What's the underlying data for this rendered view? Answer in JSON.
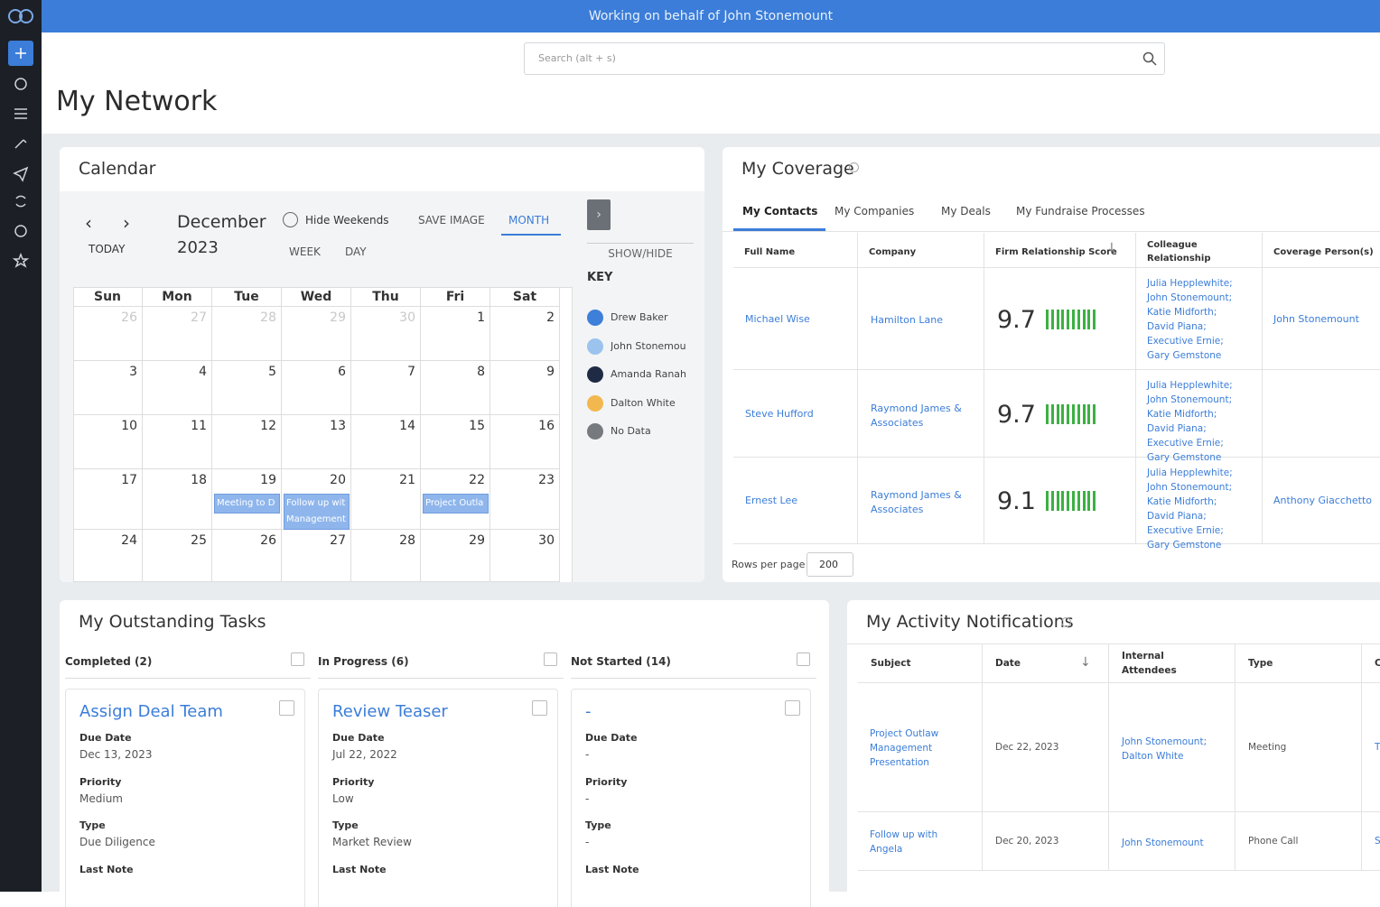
{
  "banner": "Working on behalf of John Stonemount",
  "search_placeholder": "Search (alt + s)",
  "page_title": "My Network",
  "calendar": {
    "title": "Calendar",
    "today": "TODAY",
    "month": "December",
    "year": "2023",
    "hide_weekends": "Hide Weekends",
    "save_image": "SAVE IMAGE",
    "views": [
      "MONTH",
      "WEEK",
      "DAY"
    ],
    "show_hide": "SHOW/HIDE",
    "key_title": "KEY",
    "key": [
      {
        "name": "Drew Baker",
        "color": "#3d7fd9"
      },
      {
        "name": "John Stonemou",
        "color": "#9cc3ee"
      },
      {
        "name": "Amanda Ranah",
        "color": "#1f2b45"
      },
      {
        "name": "Dalton White",
        "color": "#f2b84f"
      },
      {
        "name": "No Data",
        "color": "#76797d"
      }
    ],
    "weekdays": [
      "Sun",
      "Mon",
      "Tue",
      "Wed",
      "Thu",
      "Fri",
      "Sat"
    ],
    "weeks": [
      [
        26,
        27,
        28,
        29,
        30,
        1,
        2
      ],
      [
        3,
        4,
        5,
        6,
        7,
        8,
        9
      ],
      [
        10,
        11,
        12,
        13,
        14,
        15,
        16
      ],
      [
        17,
        18,
        19,
        20,
        21,
        22,
        23
      ],
      [
        24,
        25,
        26,
        27,
        28,
        29,
        30
      ]
    ],
    "events": [
      {
        "day": 19,
        "text": "Meeting to D"
      },
      {
        "day": 20,
        "text": "Follow up wit Management"
      },
      {
        "day": 22,
        "text": "Project Outla"
      }
    ]
  },
  "coverage": {
    "title": "My Coverage",
    "tabs": [
      "My Contacts",
      "My Companies",
      "My Deals",
      "My Fundraise Processes"
    ],
    "columns": [
      "Full Name",
      "Company",
      "Firm Relationship Score",
      "Colleague Relationship",
      "Coverage Person(s)"
    ],
    "rows": [
      {
        "name": "Michael Wise",
        "company": "Hamilton Lane",
        "score": "9.7",
        "colleagues": [
          "Julia Hepplewhite;",
          "John Stonemount;",
          "Katie Midforth;",
          "David Piana;",
          "Executive Ernie;",
          "Gary Gemstone"
        ],
        "coverage": "John Stonemount"
      },
      {
        "name": "Steve Hufford",
        "company": "Raymond James & Associates",
        "score": "9.7",
        "colleagues": [
          "Julia Hepplewhite;",
          "John Stonemount;",
          "Katie Midforth;",
          "David Piana;",
          "Executive Ernie;",
          "Gary Gemstone"
        ]
      },
      {
        "name": "Ernest Lee",
        "company": "Raymond James & Associates",
        "score": "9.1",
        "colleagues": [
          "Julia Hepplewhite;",
          "John Stonemount;",
          "Katie Midforth;",
          "David Piana;",
          "Executive Ernie;",
          "Gary Gemstone"
        ],
        "coverage": "Anthony Giacchetto"
      }
    ],
    "rows_per_page_label": "Rows per page",
    "rows_per_page": "200"
  },
  "tasks": {
    "title": "My Outstanding Tasks",
    "columns": [
      {
        "name": "Completed (2)",
        "card": {
          "title": "Assign Deal Team",
          "fields": [
            {
              "label": "Due Date",
              "value": "Dec 13, 2023"
            },
            {
              "label": "Priority",
              "value": "Medium"
            },
            {
              "label": "Type",
              "value": "Due Diligence"
            },
            {
              "label": "Last Note"
            }
          ]
        }
      },
      {
        "name": "In Progress (6)",
        "card": {
          "title": "Review Teaser",
          "fields": [
            {
              "label": "Due Date",
              "value": "Jul 22, 2022"
            },
            {
              "label": "Priority",
              "value": "Low"
            },
            {
              "label": "Type",
              "value": "Market Review"
            },
            {
              "label": "Last Note"
            }
          ]
        }
      },
      {
        "name": "Not Started (14)",
        "card": {
          "title": "-",
          "fields": [
            {
              "label": "Due Date",
              "value": "-"
            },
            {
              "label": "Priority",
              "value": "-"
            },
            {
              "label": "Type",
              "value": "-"
            },
            {
              "label": "Last Note"
            }
          ]
        }
      }
    ]
  },
  "activity": {
    "title": "My Activity Notifications",
    "columns": [
      "Subject",
      "Date",
      "Internal Attendees",
      "Type",
      "C"
    ],
    "rows": [
      {
        "subject": "Project Outlaw Management Presentation",
        "date": "Dec 22, 2023",
        "attendees": "John Stonemount; Dalton White",
        "type": "Meeting",
        "extra": "T"
      },
      {
        "subject": "Follow up with Angela",
        "date": "Dec 20, 2023",
        "attendees": "John Stonemount",
        "type": "Phone Call",
        "extra": "S"
      }
    ]
  }
}
